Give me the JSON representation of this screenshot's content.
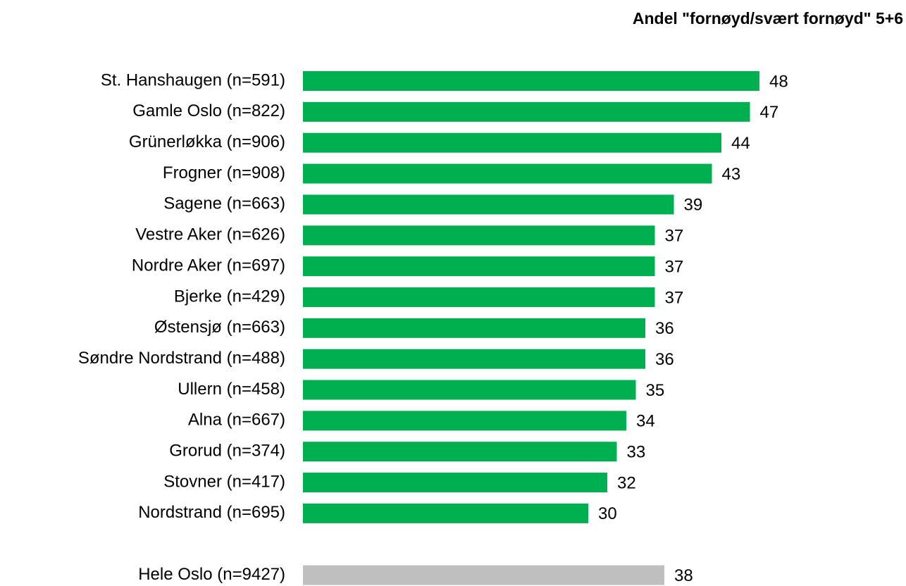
{
  "chart_data": {
    "type": "hbar",
    "title": "Andel \"fornøyd/svært fornøyd\" 5+6",
    "categories": [
      "St. Hanshaugen (n=591)",
      "Gamle Oslo (n=822)",
      "Grünerløkka (n=906)",
      "Frogner (n=908)",
      "Sagene (n=663)",
      "Vestre Aker (n=626)",
      "Nordre Aker (n=697)",
      "Bjerke (n=429)",
      "Østensjø (n=663)",
      "Søndre Nordstrand (n=488)",
      "Ullern (n=458)",
      "Alna (n=667)",
      "Grorud (n=374)",
      "Stovner (n=417)",
      "Nordstrand (n=695)",
      "Hele Oslo (n=9427)"
    ],
    "values": [
      48,
      47,
      44,
      43,
      39,
      37,
      37,
      37,
      36,
      36,
      35,
      34,
      33,
      32,
      30,
      38
    ],
    "colors": [
      "#00b050",
      "#00b050",
      "#00b050",
      "#00b050",
      "#00b050",
      "#00b050",
      "#00b050",
      "#00b050",
      "#00b050",
      "#00b050",
      "#00b050",
      "#00b050",
      "#00b050",
      "#00b050",
      "#00b050",
      "#bfbfbf"
    ]
  }
}
